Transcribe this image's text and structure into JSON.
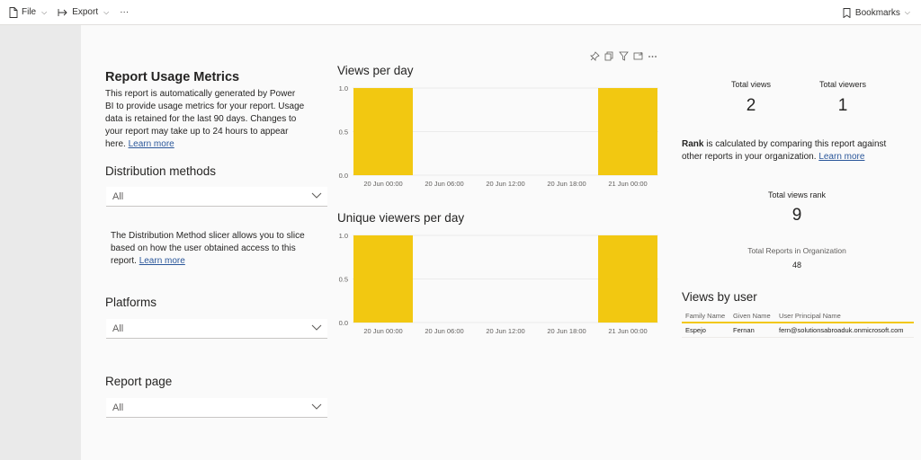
{
  "toolbar": {
    "file_label": "File",
    "export_label": "Export",
    "more_label": "···",
    "bookmarks_label": "Bookmarks"
  },
  "report": {
    "title": "Report Usage Metrics",
    "description": "This report is automatically generated by Power BI to provide usage metrics for your report. Usage data is retained for the last 90 days. Changes to your report may take up to 24 hours to appear here.",
    "learn_more": "Learn more"
  },
  "slicers": {
    "distribution": {
      "label": "Distribution methods",
      "value": "All"
    },
    "distribution_note": "The Distribution Method slicer allows you to slice based on how the user obtained access to this report.",
    "distribution_note_link": "Learn more",
    "platforms": {
      "label": "Platforms",
      "value": "All"
    },
    "report_page": {
      "label": "Report page",
      "value": "All"
    }
  },
  "kpis": {
    "total_views_label": "Total views",
    "total_views_value": "2",
    "total_viewers_label": "Total viewers",
    "total_viewers_value": "1",
    "rank_bold": "Rank",
    "rank_text": " is calculated by comparing this report against other reports in your organization.",
    "rank_link": "Learn more",
    "total_views_rank_label": "Total views rank",
    "total_views_rank_value": "9",
    "total_reports_label": "Total Reports in Organization",
    "total_reports_value": "48"
  },
  "views_by_user": {
    "title": "Views by user",
    "columns": [
      "Family Name",
      "Given Name",
      "User Principal Name"
    ],
    "rows": [
      [
        "Espejo",
        "Fernan",
        "fern@solutionsabroaduk.onmicrosoft.com"
      ]
    ]
  },
  "colors": {
    "bar": "#f2c811",
    "accent_link": "#2b579a"
  },
  "chart_data": [
    {
      "type": "bar",
      "title": "Views per day",
      "categories": [
        "20 Jun 00:00",
        "20 Jun 06:00",
        "20 Jun 12:00",
        "20 Jun 18:00",
        "21 Jun 00:00"
      ],
      "values": [
        1,
        0,
        0,
        0,
        1
      ],
      "yticks": [
        "0.0",
        "0.5",
        "1.0"
      ],
      "ylim": [
        0,
        1
      ],
      "grid": true
    },
    {
      "type": "bar",
      "title": "Unique viewers per day",
      "categories": [
        "20 Jun 00:00",
        "20 Jun 06:00",
        "20 Jun 12:00",
        "20 Jun 18:00",
        "21 Jun 00:00"
      ],
      "values": [
        1,
        0,
        0,
        0,
        1
      ],
      "yticks": [
        "0.0",
        "0.5",
        "1.0"
      ],
      "ylim": [
        0,
        1
      ],
      "grid": true
    }
  ]
}
